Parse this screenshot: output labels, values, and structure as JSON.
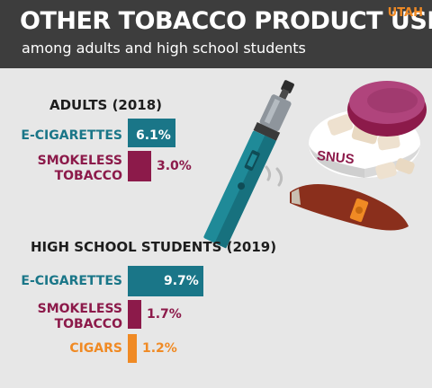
{
  "header": {
    "title": "OTHER TOBACCO PRODUCT USE",
    "subtitle": "among adults and high school students",
    "state": "UTAH"
  },
  "illustration": {
    "snus_label": "SNUS",
    "icons": [
      "vape-pen-icon",
      "snus-tin-icon",
      "cigar-icon"
    ]
  },
  "colors": {
    "e_cigarettes": "#1a7688",
    "smokeless_tobacco": "#8c1a4a",
    "cigars": "#f08a24"
  },
  "chart_data": [
    {
      "type": "bar",
      "orientation": "horizontal",
      "title": "ADULTS (2018)",
      "categories": [
        "E-CIGARETTES",
        "SMOKELESS\nTOBACCO"
      ],
      "values": [
        6.1,
        3.0
      ],
      "value_labels": [
        "6.1%",
        "3.0%"
      ],
      "unit": "%",
      "colors": [
        "#1a7688",
        "#8c1a4a"
      ]
    },
    {
      "type": "bar",
      "orientation": "horizontal",
      "title": "HIGH SCHOOL STUDENTS (2019)",
      "categories": [
        "E-CIGARETTES",
        "SMOKELESS\nTOBACCO",
        "CIGARS"
      ],
      "values": [
        9.7,
        1.7,
        1.2
      ],
      "value_labels": [
        "9.7%",
        "1.7%",
        "1.2%"
      ],
      "unit": "%",
      "colors": [
        "#1a7688",
        "#8c1a4a",
        "#f08a24"
      ]
    }
  ]
}
